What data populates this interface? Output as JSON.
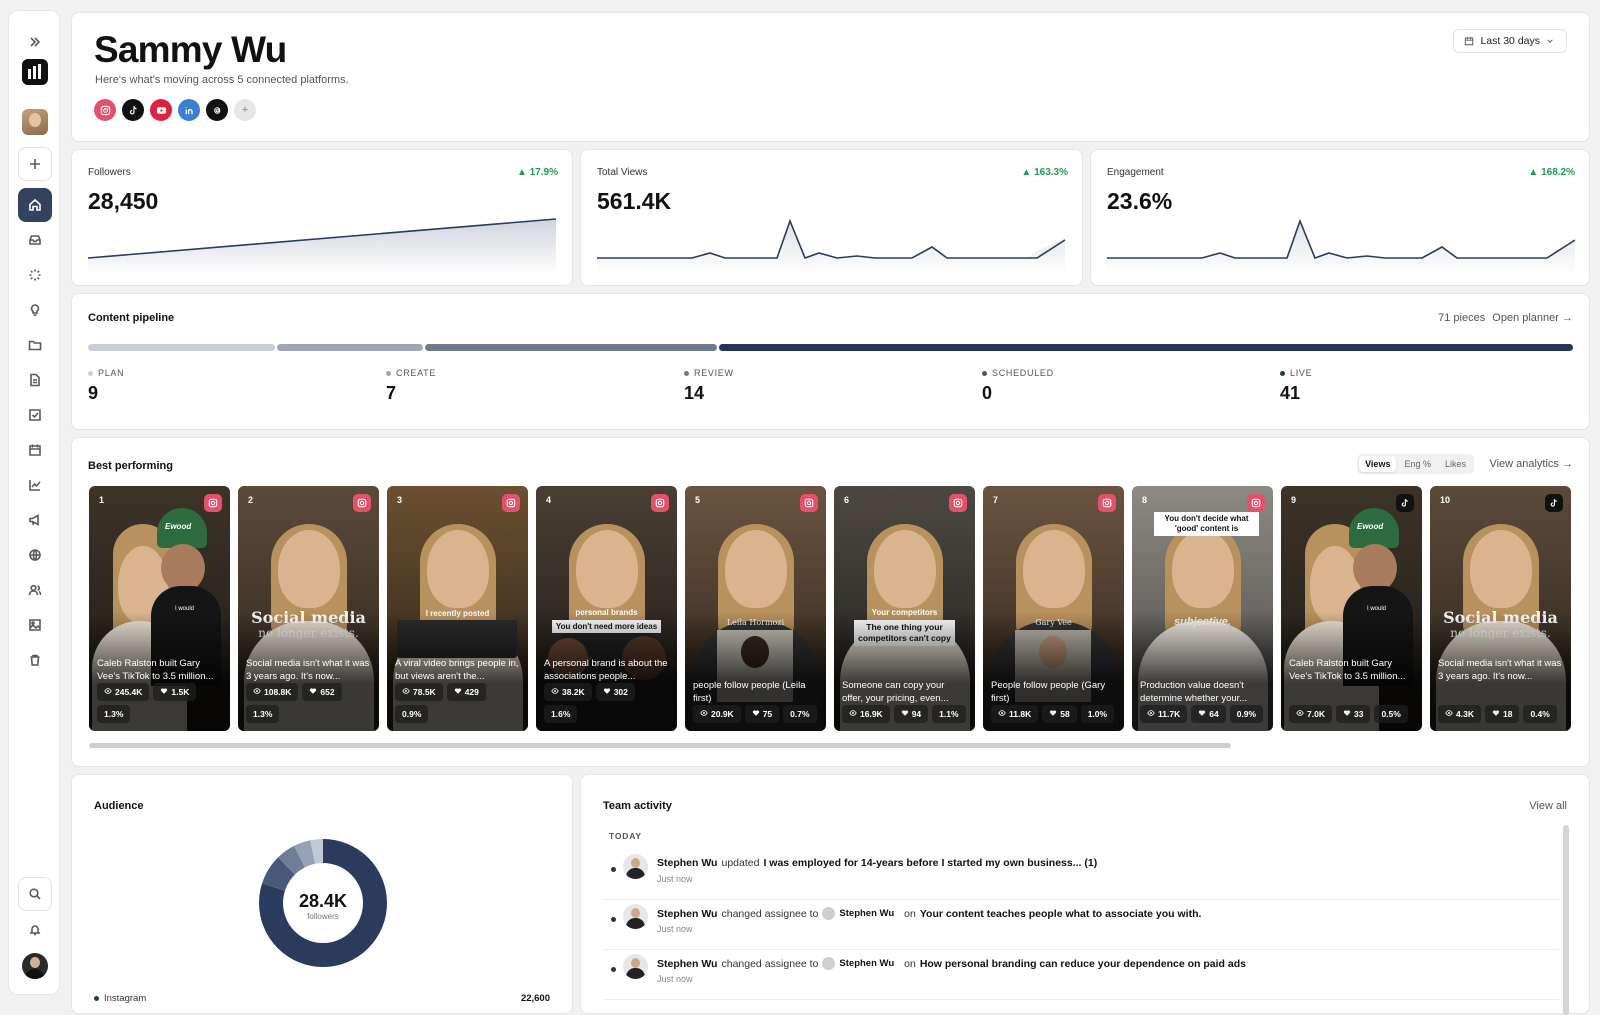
{
  "header": {
    "name": "Sammy Wu",
    "subtitle": "Here's what's moving across 5 connected platforms.",
    "date_range": "Last 30 days",
    "platforms": [
      "instagram",
      "tiktok",
      "youtube",
      "linkedin",
      "threads"
    ],
    "add_platform": "+"
  },
  "metrics": [
    {
      "label": "Followers",
      "value": "28,450",
      "delta": "▲ 17.9%"
    },
    {
      "label": "Total Views",
      "value": "561.4K",
      "delta": "▲ 163.3%"
    },
    {
      "label": "Engagement",
      "value": "23.6%",
      "delta": "▲ 168.2%"
    }
  ],
  "pipeline": {
    "title": "Content pipeline",
    "count": "71 pieces",
    "link": "Open planner →",
    "stages": [
      {
        "label": "PLAN",
        "value": "9",
        "color": "#c9cfd9"
      },
      {
        "label": "CREATE",
        "value": "7",
        "color": "#9da6b6"
      },
      {
        "label": "REVIEW",
        "value": "14",
        "color": "#6e7a90"
      },
      {
        "label": "SCHEDULED",
        "value": "0",
        "color": "#4a5670"
      },
      {
        "label": "LIVE",
        "value": "41",
        "color": "#243658"
      }
    ]
  },
  "best": {
    "title": "Best performing",
    "toggle": [
      "Views",
      "Eng %",
      "Likes"
    ],
    "link": "View analytics →",
    "items": [
      {
        "n": "1",
        "platform": "instagram",
        "caption": "Caleb Ralston built Gary Vee's TikTok to 3.5 million...",
        "views": "245.4K",
        "likes": "1.5K",
        "eng": "1.3%"
      },
      {
        "n": "2",
        "platform": "instagram",
        "caption": "Social media isn't what it was 3 years ago. It's now...",
        "views": "108.8K",
        "likes": "652",
        "eng": "1.3%"
      },
      {
        "n": "3",
        "platform": "instagram",
        "caption": "A viral video brings people in, but views aren't the...",
        "views": "78.5K",
        "likes": "429",
        "eng": "0.9%"
      },
      {
        "n": "4",
        "platform": "instagram",
        "caption": "A personal brand is about the associations people...",
        "views": "38.2K",
        "likes": "302",
        "eng": "1.6%"
      },
      {
        "n": "5",
        "platform": "instagram",
        "caption": "people follow people (Leila first)",
        "views": "20.9K",
        "likes": "75",
        "eng": "0.7%"
      },
      {
        "n": "6",
        "platform": "instagram",
        "caption": "Someone can copy your offer, your pricing, even...",
        "views": "16.9K",
        "likes": "94",
        "eng": "1.1%"
      },
      {
        "n": "7",
        "platform": "instagram",
        "caption": "People follow people (Gary first)",
        "views": "11.8K",
        "likes": "58",
        "eng": "1.0%"
      },
      {
        "n": "8",
        "platform": "instagram",
        "caption": "Production value doesn't determine whether your...",
        "views": "11.7K",
        "likes": "64",
        "eng": "0.9%"
      },
      {
        "n": "9",
        "platform": "tiktok",
        "caption": "Caleb Ralston built Gary Vee's TikTok to 3.5 million...",
        "views": "7.0K",
        "likes": "33",
        "eng": "0.5%"
      },
      {
        "n": "10",
        "platform": "tiktok",
        "caption": "Social media isn't what it was 3 years ago. It's now...",
        "views": "4.3K",
        "likes": "18",
        "eng": "0.4%"
      }
    ],
    "overlays": {
      "social": "Social media",
      "exists": "no   longer   exists.",
      "recent": "I recently posted",
      "pb": "personal brands",
      "ideas": "You don't need more ideas",
      "leila": "Leila Hormozi",
      "competitors": "Your competitors",
      "copy": "The one thing your competitors can't copy",
      "gary": "Gary Vee",
      "decide": "You don't decide what 'good' content is",
      "subjective": "subjective.",
      "hat": "Ewood",
      "shirt": "I would"
    }
  },
  "audience": {
    "title": "Audience",
    "center_value": "28.4K",
    "center_label": "followers",
    "first_row_label": "Instagram",
    "first_row_value": "22,600"
  },
  "activity": {
    "title": "Team activity",
    "link": "View all",
    "group": "TODAY",
    "rows": [
      {
        "who": "Stephen Wu",
        "action": "updated",
        "target": "I was employed for 14-years before I started my own business... (1)",
        "time": "Just now"
      },
      {
        "who": "Stephen Wu",
        "action": "changed assignee to",
        "assignee": "Stephen Wu",
        "on": "on",
        "target": "Your content teaches people what to associate you with.",
        "time": "Just now"
      },
      {
        "who": "Stephen Wu",
        "action": "changed assignee to",
        "assignee": "Stephen Wu",
        "on": "on",
        "target": "How personal branding can reduce your dependence on paid ads",
        "time": "Just now"
      }
    ]
  }
}
